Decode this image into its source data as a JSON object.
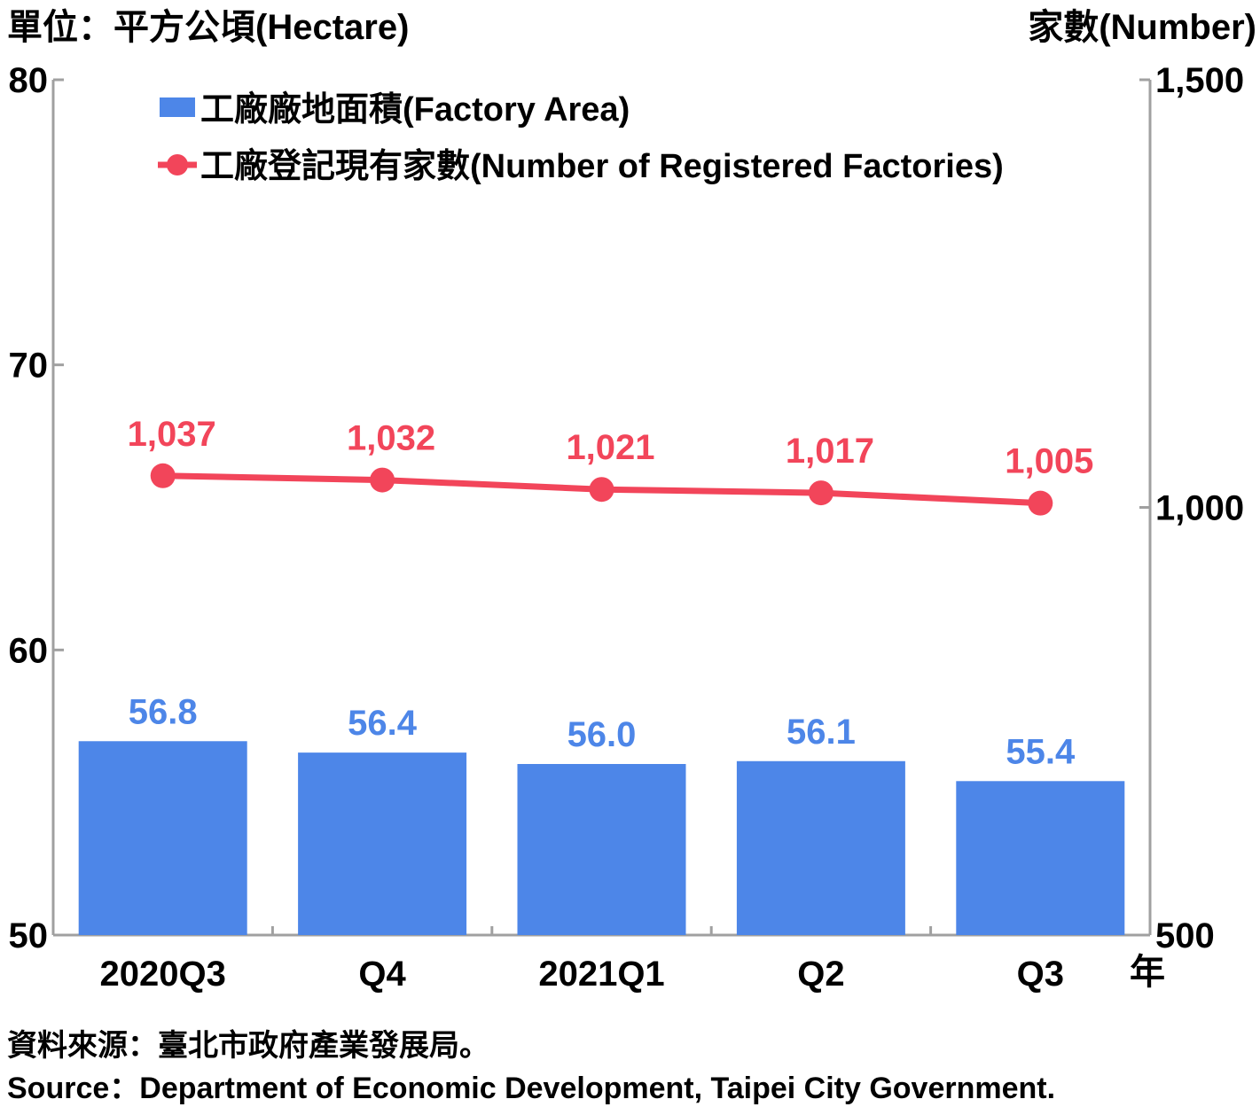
{
  "chart_data": {
    "type": "bar",
    "left_axis_label": "單位：平方公頃(Hectare)",
    "right_axis_label": "家數(Number)",
    "x_unit_label": "年",
    "categories": [
      "2020Q3",
      "Q4",
      "2021Q1",
      "Q2",
      "Q3"
    ],
    "left_ylim": [
      50,
      80
    ],
    "left_ticks": [
      "50",
      "60",
      "70",
      "80"
    ],
    "right_ylim": [
      500,
      1500
    ],
    "right_ticks": [
      "500",
      "1,000",
      "1,500"
    ],
    "legend_position": "top-left",
    "grid": false,
    "series": [
      {
        "name": "工廠廠地面積(Factory Area)",
        "type": "bar",
        "axis": "left",
        "color": "#4d86e8",
        "values": [
          56.8,
          56.4,
          56.0,
          56.1,
          55.4
        ],
        "labels": [
          "56.8",
          "56.4",
          "56.0",
          "56.1",
          "55.4"
        ]
      },
      {
        "name": "工廠登記現有家數(Number of Registered Factories)",
        "type": "line",
        "axis": "right",
        "color": "#f2455a",
        "values": [
          1037,
          1032,
          1021,
          1017,
          1005
        ],
        "labels": [
          "1,037",
          "1,032",
          "1,021",
          "1,017",
          "1,005"
        ]
      }
    ]
  },
  "source": {
    "zh": "資料來源：臺北市政府產業發展局。",
    "en": "Source：Department of Economic Development, Taipei City Government."
  }
}
